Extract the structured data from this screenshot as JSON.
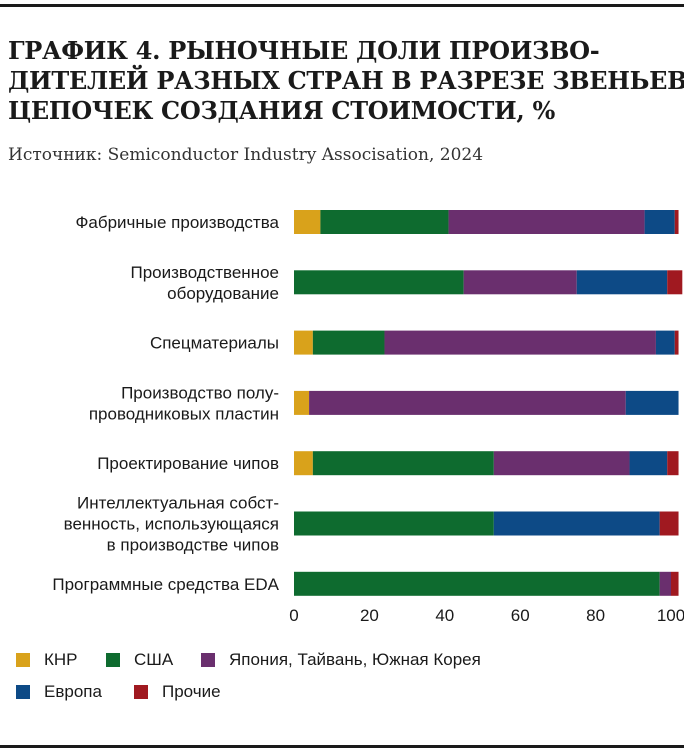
{
  "title_lines": [
    "ГРАФИК 4. РЫНОЧНЫЕ ДОЛИ ПРОИЗВО-",
    "ДИТЕЛЕЙ РАЗНЫХ СТРАН В РАЗРЕЗЕ ЗВЕНЬЕВ",
    "ЦЕПОЧЕК СОЗДАНИЯ СТОИМОСТИ, %"
  ],
  "source": "Источник: Semiconductor Industry Associsation, 2024",
  "chart_data": {
    "type": "bar",
    "orientation": "horizontal",
    "stacked": true,
    "categories": [
      [
        "Фабричные производства"
      ],
      [
        "Производственное",
        "оборудование"
      ],
      [
        "Спецматериалы"
      ],
      [
        "Производство полу-",
        "проводниковых пластин"
      ],
      [
        "Проектирование чипов"
      ],
      [
        "Интеллектуальная собст-",
        "венность, использующаяся",
        "в производстве чипов"
      ],
      [
        "Программные средства EDA"
      ]
    ],
    "series": [
      {
        "name": "КНР",
        "color": "#d9a21b",
        "values": [
          7,
          0,
          5,
          4,
          5,
          0,
          0
        ]
      },
      {
        "name": "США",
        "color": "#0e6b2f",
        "values": [
          34,
          45,
          19,
          0,
          48,
          53,
          97
        ]
      },
      {
        "name": "Япония, Тайвань, Южная Корея",
        "color": "#6a2f6e",
        "values": [
          52,
          30,
          72,
          84,
          36,
          0,
          3
        ]
      },
      {
        "name": "Европа",
        "color": "#0d4a86",
        "values": [
          8,
          24,
          5,
          14,
          10,
          44,
          0
        ]
      },
      {
        "name": "Прочие",
        "color": "#a01920",
        "values": [
          1,
          4,
          1,
          0,
          3,
          5,
          2
        ]
      }
    ],
    "xlim": [
      0,
      100
    ],
    "xticks": [
      0,
      20,
      40,
      60,
      80,
      100
    ],
    "grid": false,
    "legend_position": "bottom"
  }
}
